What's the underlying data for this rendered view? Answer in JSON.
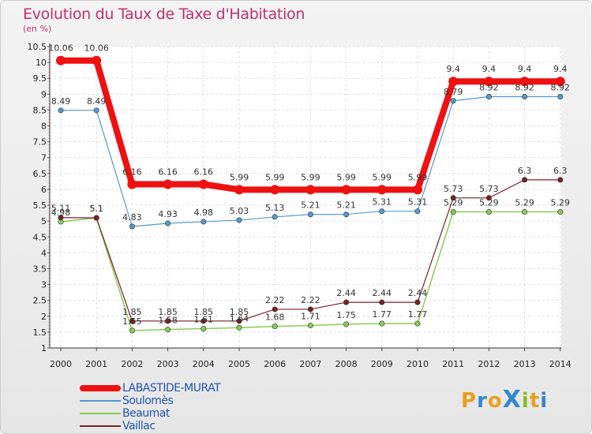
{
  "header": {
    "title": "Evolution du Taux de Taxe d'Habitation",
    "subtitle": "(en %)"
  },
  "logo": {
    "text": "ProXiti",
    "letters": [
      "P",
      "r",
      "o",
      "X",
      "i",
      "t",
      "i"
    ],
    "colors": [
      "#e8a020",
      "#3388cc",
      "#e8a020",
      "#3388cc",
      "#88bb22",
      "#e8a020",
      "#3388cc"
    ]
  },
  "chart_data": {
    "type": "line",
    "title": "Evolution du Taux de Taxe d'Habitation",
    "ylabel": "(en %)",
    "xlabel": "",
    "x": [
      "2000",
      "2001",
      "2002",
      "2003",
      "2004",
      "2005",
      "2006",
      "2007",
      "2008",
      "2009",
      "2010",
      "2011",
      "2012",
      "2013",
      "2014"
    ],
    "ylim": [
      1,
      10.5
    ],
    "yticks": [
      "1",
      "1.5",
      "2",
      "2.5",
      "3",
      "3.5",
      "4",
      "4.5",
      "5",
      "5.5",
      "6",
      "6.5",
      "7",
      "7.5",
      "8",
      "8.5",
      "9",
      "9.5",
      "10",
      "10.5"
    ],
    "grid": true,
    "legend_position": "bottom-left",
    "series": [
      {
        "name": "Beaumat",
        "color": "#88cc55",
        "width": 1.5,
        "values": [
          4.98,
          5.1,
          1.55,
          1.58,
          1.61,
          1.64,
          1.68,
          1.71,
          1.75,
          1.77,
          1.77,
          5.29,
          5.29,
          5.29,
          5.29
        ],
        "labels": [
          "4.98",
          "5.1",
          "1.55",
          "1.58",
          "1.61",
          "1.64",
          "1.68",
          "1.71",
          "1.75",
          "1.77",
          "1.77",
          "5.29",
          "5.29",
          "5.29",
          "5.29"
        ]
      },
      {
        "name": "Vaillac",
        "color": "#772222",
        "width": 1.2,
        "values": [
          5.11,
          5.1,
          1.85,
          1.85,
          1.85,
          1.85,
          2.22,
          2.22,
          2.44,
          2.44,
          2.44,
          5.73,
          5.73,
          6.3,
          6.3
        ],
        "labels": [
          "5.11",
          "5.1",
          "1.85",
          "1.85",
          "1.85",
          "1.85",
          "2.22",
          "2.22",
          "2.44",
          "2.44",
          "2.44",
          "5.73",
          "5.73",
          "6.3",
          "6.3"
        ]
      },
      {
        "name": "Soulomès",
        "color": "#5599cc",
        "width": 1.2,
        "values": [
          8.49,
          8.49,
          4.83,
          4.93,
          4.98,
          5.03,
          5.13,
          5.21,
          5.21,
          5.31,
          5.31,
          8.79,
          8.92,
          8.92,
          8.92
        ],
        "labels": [
          "8.49",
          "8.49",
          "4.83",
          "4.93",
          "4.98",
          "5.03",
          "5.13",
          "5.21",
          "5.21",
          "5.31",
          "5.31",
          "8.79",
          "8.92",
          "8.92",
          "8.92"
        ]
      },
      {
        "name": "LABASTIDE-MURAT",
        "color": "#ee1111",
        "width": 8,
        "values": [
          10.06,
          10.06,
          6.16,
          6.16,
          6.16,
          5.99,
          5.99,
          5.99,
          5.99,
          5.99,
          5.99,
          9.4,
          9.4,
          9.4,
          9.4
        ],
        "labels": [
          "10.06",
          "10.06",
          "6.16",
          "6.16",
          "6.16",
          "5.99",
          "5.99",
          "5.99",
          "5.99",
          "5.99",
          "5.99",
          "9.4",
          "9.4",
          "9.4",
          "9.4"
        ]
      }
    ],
    "legend": [
      "LABASTIDE-MURAT",
      "Soulomès",
      "Beaumat",
      "Vaillac"
    ]
  }
}
